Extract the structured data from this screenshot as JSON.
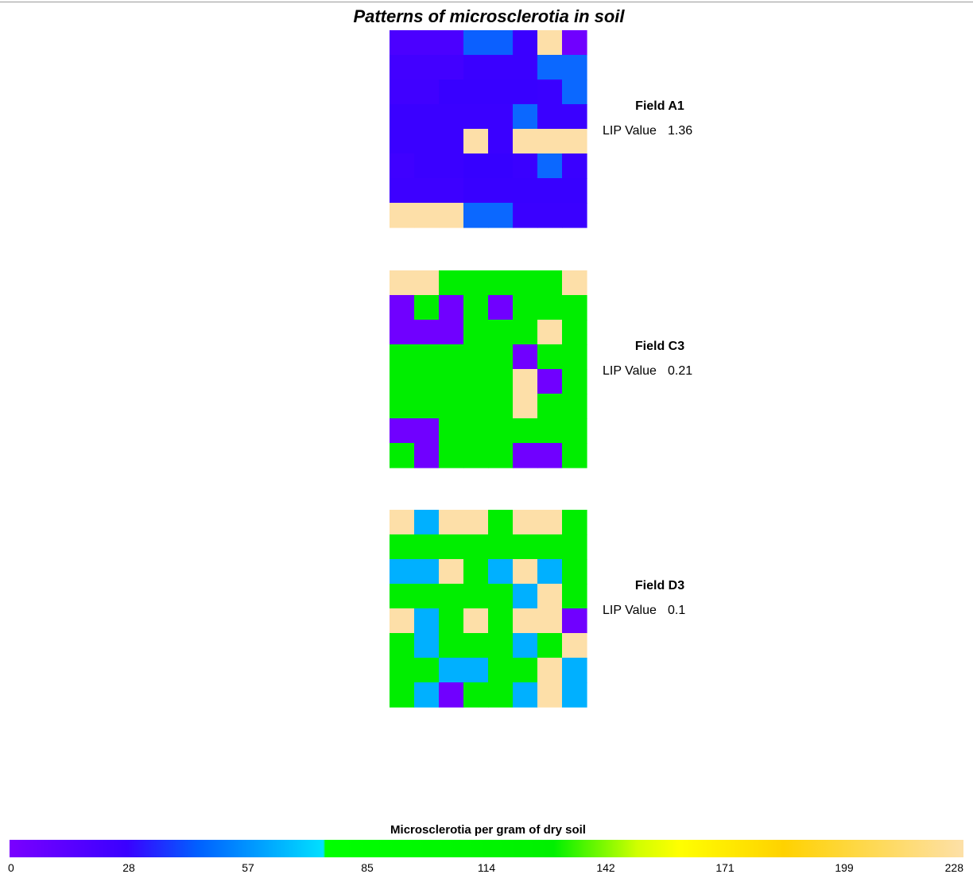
{
  "chart_data": {
    "type": "heatmap",
    "title": "Patterns of microsclerotia in soil",
    "colorbar": {
      "label": "Microsclerotia per gram of dry soil",
      "ticks": [
        "0",
        "28",
        "57",
        "85",
        "114",
        "142",
        "171",
        "199",
        "228"
      ],
      "range": [
        0,
        228
      ],
      "stops": [
        {
          "value": 0,
          "color": "#7a00ff"
        },
        {
          "value": 28,
          "color": "#3a00ff"
        },
        {
          "value": 45,
          "color": "#0060ff"
        },
        {
          "value": 75,
          "color": "#00e0ff"
        },
        {
          "value": 75.5,
          "color": "#00ff00"
        },
        {
          "value": 130,
          "color": "#00f000"
        },
        {
          "value": 150,
          "color": "#d0ff00"
        },
        {
          "value": 160,
          "color": "#ffff00"
        },
        {
          "value": 185,
          "color": "#ffd200"
        },
        {
          "value": 228,
          "color": "#fde0a8"
        }
      ]
    },
    "fields": [
      {
        "name": "Field A1",
        "lip_label": "LIP Value",
        "lip_value": "1.36",
        "grid": [
          [
            "#4b00ff",
            "#4b00ff",
            "#4b00ff",
            "#0b60ff",
            "#0b60ff",
            "#3a00ff",
            "#fddfa8",
            "#7000ff"
          ],
          [
            "#4200ff",
            "#4200ff",
            "#4200ff",
            "#3a00ff",
            "#3a00ff",
            "#3a00ff",
            "#0b68ff",
            "#0b68ff"
          ],
          [
            "#4000ff",
            "#4000ff",
            "#3800ff",
            "#3800ff",
            "#3800ff",
            "#3800ff",
            "#3a00ff",
            "#0b68ff"
          ],
          [
            "#3a00ff",
            "#3a00ff",
            "#3a00ff",
            "#3a00ff",
            "#3a00ff",
            "#0b68ff",
            "#3a00ff",
            "#3a00ff"
          ],
          [
            "#3a00ff",
            "#3a00ff",
            "#3a00ff",
            "#fddfa8",
            "#3a00ff",
            "#fddfa8",
            "#fddfa8",
            "#fddfa8"
          ],
          [
            "#3f00ff",
            "#3a00ff",
            "#3a00ff",
            "#3600ff",
            "#3600ff",
            "#3a00ff",
            "#0b68ff",
            "#3a00ff"
          ],
          [
            "#3d00ff",
            "#3d00ff",
            "#3d00ff",
            "#3800ff",
            "#3800ff",
            "#3800ff",
            "#3800ff",
            "#3800ff"
          ],
          [
            "#fddfa8",
            "#fddfa8",
            "#fddfa8",
            "#0b68ff",
            "#0b68ff",
            "#3a00ff",
            "#3a00ff",
            "#3a00ff"
          ]
        ]
      },
      {
        "name": "Field C3",
        "lip_label": "LIP Value",
        "lip_value": "0.21",
        "grid": [
          [
            "#fddfa8",
            "#fddfa8",
            "#00ee00",
            "#00ee00",
            "#00ee00",
            "#00ee00",
            "#00ee00",
            "#fddfa8"
          ],
          [
            "#7000ff",
            "#00ee00",
            "#7000ff",
            "#00ee00",
            "#7000ff",
            "#00ee00",
            "#00ee00",
            "#00ee00"
          ],
          [
            "#7000ff",
            "#7000ff",
            "#7000ff",
            "#00ee00",
            "#00ee00",
            "#00ee00",
            "#fddfa8",
            "#00ee00"
          ],
          [
            "#00ee00",
            "#00ee00",
            "#00ee00",
            "#00ee00",
            "#00ee00",
            "#7000ff",
            "#00ee00",
            "#00ee00"
          ],
          [
            "#00ee00",
            "#00ee00",
            "#00ee00",
            "#00ee00",
            "#00ee00",
            "#fddfa8",
            "#7000ff",
            "#00ee00"
          ],
          [
            "#00ee00",
            "#00ee00",
            "#00ee00",
            "#00ee00",
            "#00ee00",
            "#fddfa8",
            "#00ee00",
            "#00ee00"
          ],
          [
            "#7000ff",
            "#7000ff",
            "#00ee00",
            "#00ee00",
            "#00ee00",
            "#00ee00",
            "#00ee00",
            "#00ee00"
          ],
          [
            "#00ee00",
            "#7000ff",
            "#00ee00",
            "#00ee00",
            "#00ee00",
            "#7000ff",
            "#7000ff",
            "#00ee00"
          ]
        ]
      },
      {
        "name": "Field D3",
        "lip_label": "LIP Value",
        "lip_value": "0.1",
        "grid": [
          [
            "#fddfa8",
            "#00b0ff",
            "#fddfa8",
            "#fddfa8",
            "#00ee00",
            "#fddfa8",
            "#fddfa8",
            "#00ee00"
          ],
          [
            "#00ee00",
            "#00ee00",
            "#00ee00",
            "#00ee00",
            "#00ee00",
            "#00ee00",
            "#00ee00",
            "#00ee00"
          ],
          [
            "#00b0ff",
            "#00b0ff",
            "#fddfa8",
            "#00ee00",
            "#00b0ff",
            "#fddfa8",
            "#00b0ff",
            "#00ee00"
          ],
          [
            "#00ee00",
            "#00ee00",
            "#00ee00",
            "#00ee00",
            "#00ee00",
            "#00b0ff",
            "#fddfa8",
            "#00ee00"
          ],
          [
            "#fddfa8",
            "#00b0ff",
            "#00ee00",
            "#fddfa8",
            "#00ee00",
            "#fddfa8",
            "#fddfa8",
            "#7000ff"
          ],
          [
            "#00ee00",
            "#00b0ff",
            "#00ee00",
            "#00ee00",
            "#00ee00",
            "#00b0ff",
            "#00ee00",
            "#fddfa8"
          ],
          [
            "#00ee00",
            "#00ee00",
            "#00b0ff",
            "#00b0ff",
            "#00ee00",
            "#00ee00",
            "#fddfa8",
            "#00b0ff"
          ],
          [
            "#00ee00",
            "#00b0ff",
            "#7000ff",
            "#00ee00",
            "#00ee00",
            "#00b0ff",
            "#fddfa8",
            "#00b0ff"
          ]
        ]
      }
    ]
  }
}
